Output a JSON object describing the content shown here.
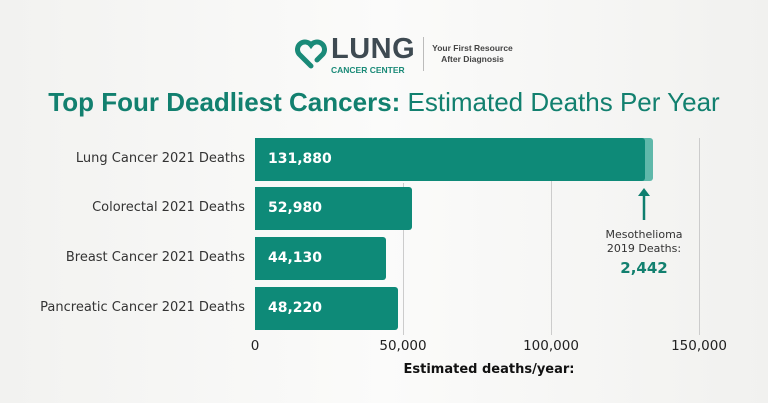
{
  "logo": {
    "word": "LUNG",
    "sub": "CANCER CENTER",
    "tagline_1": "Your First Resource",
    "tagline_2": "After Diagnosis"
  },
  "title": {
    "bold": "Top Four Deadliest Cancers:",
    "rest": " Estimated Deaths Per Year"
  },
  "colors": {
    "bar": "#0e8a78",
    "overlay": "#5fb8aa",
    "title": "#12806f"
  },
  "chart_data": {
    "type": "bar",
    "orientation": "horizontal",
    "categories": [
      "Lung Cancer 2021 Deaths",
      "Colorectal 2021 Deaths",
      "Breast Cancer 2021 Deaths",
      "Pancreatic Cancer 2021 Deaths"
    ],
    "values": [
      131880,
      52980,
      44130,
      48220
    ],
    "value_labels": [
      "131,880",
      "52,980",
      "44,130",
      "48,220"
    ],
    "xlabel": "Estimated deaths/year:",
    "xlim": [
      0,
      150000
    ],
    "ticks": [
      0,
      50000,
      100000,
      150000
    ],
    "tick_labels": [
      "0",
      "50,000",
      "100,000",
      "150,000"
    ],
    "grid": "vertical",
    "annotation": {
      "line1": "Mesothelioma",
      "line2": "2019 Deaths:",
      "value_label": "2,442",
      "value": 2442
    }
  }
}
